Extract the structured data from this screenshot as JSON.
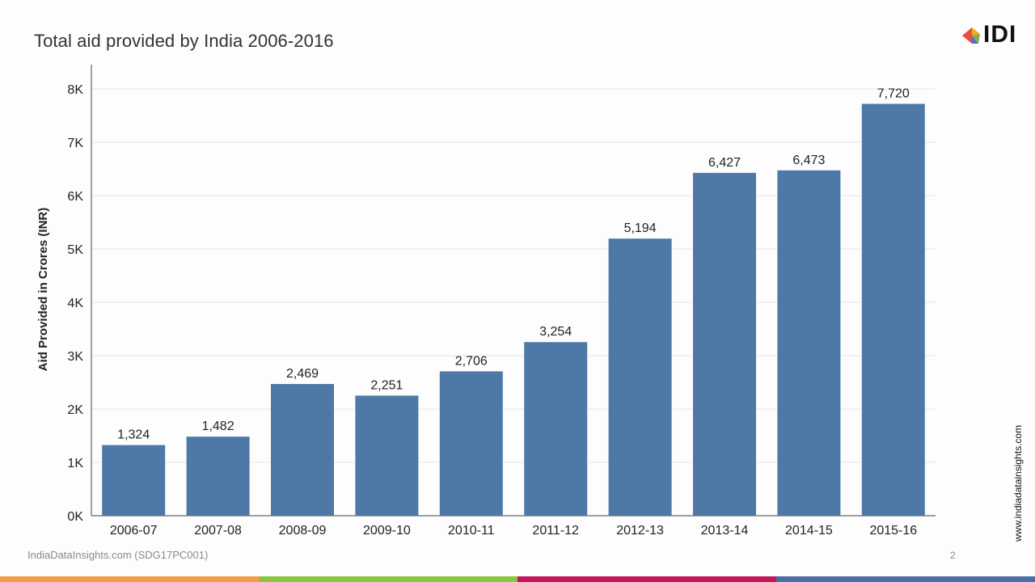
{
  "slide": {
    "title": "Total aid provided by India 2006-2016",
    "logo_text": "IDI",
    "side_url": "www.indiadatainsights.com",
    "footer_source": "IndiaDataInsights.com (SDG17PC001)",
    "page_number": "2",
    "stripe_colors": [
      "#f39c4a",
      "#8cc63f",
      "#c2185b",
      "#4a6fa5"
    ]
  },
  "chart_data": {
    "type": "bar",
    "title": "Total aid provided by India 2006-2016",
    "xlabel": "",
    "ylabel": "Aid Provided in Crores (INR)",
    "categories": [
      "2006-07",
      "2007-08",
      "2008-09",
      "2009-10",
      "2010-11",
      "2011-12",
      "2012-13",
      "2013-14",
      "2014-15",
      "2015-16"
    ],
    "values": [
      1324,
      1482,
      2469,
      2251,
      2706,
      3254,
      5194,
      6427,
      6473,
      7720
    ],
    "data_labels": [
      "1,324",
      "1,482",
      "2,469",
      "2,251",
      "2,706",
      "3,254",
      "5,194",
      "6,427",
      "6,473",
      "7,720"
    ],
    "ylim": [
      0,
      8000
    ],
    "yticks": [
      0,
      1000,
      2000,
      3000,
      4000,
      5000,
      6000,
      7000,
      8000
    ],
    "ytick_labels": [
      "0K",
      "1K",
      "2K",
      "3K",
      "4K",
      "5K",
      "6K",
      "7K",
      "8K"
    ],
    "bar_color": "#4e79a7",
    "grid": true,
    "legend": "none"
  }
}
